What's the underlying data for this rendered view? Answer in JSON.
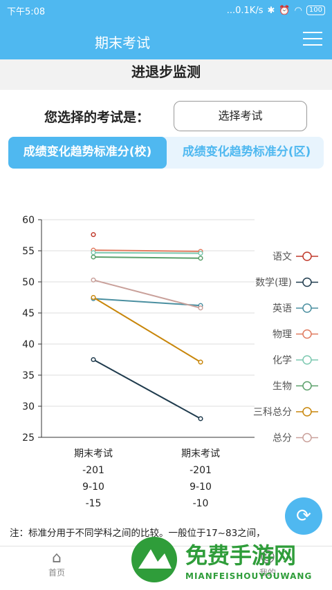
{
  "status_bar": {
    "time": "下午5:08",
    "network": "...0.1K/s",
    "battery": "100"
  },
  "app_bar": {
    "title": "期末考试"
  },
  "section_title": "进退步监测",
  "exam_selector": {
    "label": "您选择的考试是：",
    "button": "选择考试"
  },
  "tabs": [
    {
      "label": "成绩变化趋势标准分(校)",
      "active": true
    },
    {
      "label": "成绩变化趋势标准分(区)",
      "active": false
    }
  ],
  "chart_data": {
    "type": "line",
    "ylim": [
      25,
      60
    ],
    "yticks": [
      "60",
      "55",
      "50",
      "45",
      "40",
      "35",
      "30",
      "25"
    ],
    "x_labels": [
      [
        "期末考试",
        "-201",
        "9-10",
        "-15"
      ],
      [
        "期末考试",
        "-201",
        "9-10",
        "-10"
      ]
    ],
    "series": [
      {
        "name": "语文",
        "color": "#c0392b",
        "values": [
          57.6,
          null
        ]
      },
      {
        "name": "数学(理)",
        "color": "#1f3b4d",
        "values": [
          37.5,
          28.0
        ]
      },
      {
        "name": "英语",
        "color": "#4a8fa0",
        "values": [
          47.3,
          46.2
        ]
      },
      {
        "name": "物理",
        "color": "#e07a5f",
        "values": [
          55.1,
          54.9
        ]
      },
      {
        "name": "化学",
        "color": "#7cc8b0",
        "values": [
          54.7,
          54.6
        ]
      },
      {
        "name": "生物",
        "color": "#5aa06a",
        "values": [
          54.0,
          53.8
        ]
      },
      {
        "name": "三科总分",
        "color": "#c8860a",
        "values": [
          47.5,
          37.1
        ]
      },
      {
        "name": "总分",
        "color": "#c9a09a",
        "values": [
          50.3,
          45.8
        ]
      }
    ]
  },
  "note": "注：标准分用于不同学科之间的比较。一般位于17~83之间，",
  "bottom_tabs": [
    {
      "label": "首页"
    },
    {
      "label": "我的"
    }
  ],
  "watermark": {
    "text": "免费手游网",
    "subtext": "MIANFEISHOUYOUWANG"
  }
}
